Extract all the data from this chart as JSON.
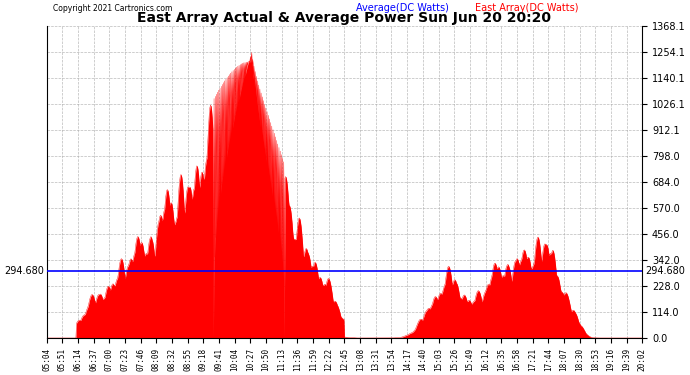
{
  "title": "East Array Actual & Average Power Sun Jun 20 20:20",
  "copyright": "Copyright 2021 Cartronics.com",
  "legend_avg": "Average(DC Watts)",
  "legend_east": "East Array(DC Watts)",
  "avg_value": 294.68,
  "avg_label": "294.680",
  "y_max": 1368.1,
  "y_min": 0.0,
  "y_ticks": [
    0.0,
    114.0,
    228.0,
    342.0,
    456.0,
    570.0,
    684.0,
    798.0,
    912.1,
    1026.1,
    1140.1,
    1254.1,
    1368.1
  ],
  "background_color": "#ffffff",
  "grid_color": "#aaaaaa",
  "fill_color": "#ff0000",
  "line_color": "#0000ff",
  "title_color": "#000000",
  "copyright_color": "#000000",
  "legend_avg_color": "#0000ff",
  "legend_east_color": "#ff0000",
  "x_labels": [
    "05:04",
    "05:51",
    "06:14",
    "06:37",
    "07:00",
    "07:23",
    "07:46",
    "08:09",
    "08:32",
    "08:55",
    "09:18",
    "09:41",
    "10:04",
    "10:27",
    "10:50",
    "11:13",
    "11:36",
    "11:59",
    "12:22",
    "12:45",
    "13:08",
    "13:31",
    "13:54",
    "14:17",
    "14:40",
    "15:03",
    "15:26",
    "15:49",
    "16:12",
    "16:35",
    "16:58",
    "17:21",
    "17:44",
    "18:07",
    "18:30",
    "18:53",
    "19:16",
    "19:39",
    "20:02"
  ]
}
